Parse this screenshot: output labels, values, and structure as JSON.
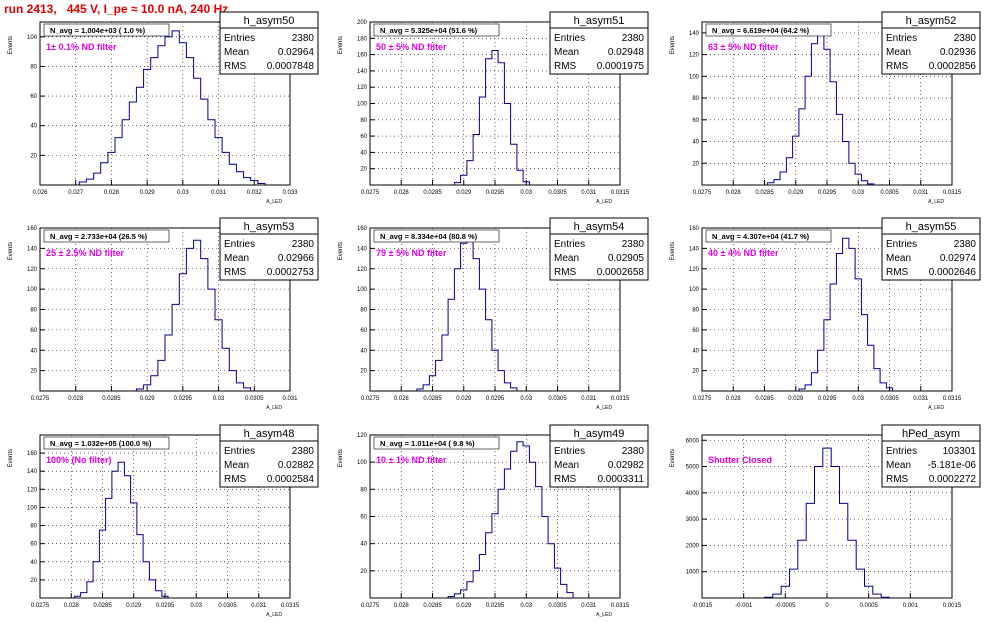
{
  "title": "run 2413,   445 V, I_pe ≈ 10.0 nA, 240 Hz",
  "colors": {
    "title": "#e00000",
    "histogram": "#00008b",
    "annotation": "#e000e0",
    "frame": "#000000"
  },
  "y_axis_label": "Events",
  "x_axis_label": "A_LED",
  "stats_labels": {
    "entries": "Entries",
    "mean": "Mean",
    "rms": "RMS"
  },
  "chart_data": [
    {
      "type": "histogram",
      "name": "h_asym50",
      "title": "N_avg = 1.004e+03 ( 1.0 %)",
      "annotation": "1± 0.1% ND filter",
      "xlim": [
        0.026,
        0.033
      ],
      "ylim": [
        0,
        110
      ],
      "xticks": [
        0.026,
        0.027,
        0.028,
        0.029,
        0.03,
        0.031,
        0.032,
        0.033
      ],
      "yticks": [
        20,
        40,
        60,
        80,
        100
      ],
      "stats": {
        "entries": "2380",
        "mean": "0.02964",
        "rms": "0.0007848"
      },
      "x": [
        0.0272,
        0.0274,
        0.0276,
        0.0278,
        0.028,
        0.0282,
        0.0284,
        0.0286,
        0.0288,
        0.029,
        0.0292,
        0.0294,
        0.0296,
        0.0298,
        0.03,
        0.0302,
        0.0304,
        0.0306,
        0.0308,
        0.031,
        0.0312,
        0.0314,
        0.0316,
        0.0318,
        0.032,
        0.0322
      ],
      "values": [
        2,
        4,
        8,
        15,
        22,
        32,
        44,
        56,
        66,
        78,
        86,
        94,
        100,
        104,
        96,
        86,
        72,
        58,
        44,
        32,
        22,
        14,
        9,
        5,
        3,
        1
      ]
    },
    {
      "type": "histogram",
      "name": "h_asym51",
      "title": "N_avg = 5.325e+04 (51.6 %)",
      "annotation": "50 ± 5% ND filter",
      "xlim": [
        0.0275,
        0.0315
      ],
      "ylim": [
        0,
        200
      ],
      "xticks": [
        0.0275,
        0.028,
        0.0285,
        0.029,
        0.0295,
        0.03,
        0.0305,
        0.031,
        0.0315
      ],
      "yticks": [
        20,
        40,
        60,
        80,
        100,
        120,
        140,
        160,
        180,
        200
      ],
      "stats": {
        "entries": "2380",
        "mean": "0.02948",
        "rms": "0.0001975"
      },
      "x": [
        0.0289,
        0.029,
        0.0291,
        0.0292,
        0.0293,
        0.0294,
        0.0295,
        0.0296,
        0.0297,
        0.0298,
        0.0299,
        0.03
      ],
      "values": [
        3,
        12,
        30,
        62,
        108,
        155,
        165,
        150,
        100,
        50,
        18,
        4
      ]
    },
    {
      "type": "histogram",
      "name": "h_asym52",
      "title": "N_avg = 6.619e+04 (64.2 %)",
      "annotation": "63 ± 5% ND filter",
      "xlim": [
        0.0275,
        0.0315
      ],
      "ylim": [
        0,
        150
      ],
      "xticks": [
        0.0275,
        0.028,
        0.0285,
        0.029,
        0.0295,
        0.03,
        0.0305,
        0.031,
        0.0315
      ],
      "yticks": [
        20,
        40,
        60,
        80,
        100,
        120,
        140
      ],
      "stats": {
        "entries": "2380",
        "mean": "0.02936",
        "rms": "0.0002856"
      },
      "x": [
        0.0286,
        0.0287,
        0.0288,
        0.0289,
        0.029,
        0.0291,
        0.0292,
        0.0293,
        0.0294,
        0.0295,
        0.0296,
        0.0297,
        0.0298,
        0.0299,
        0.03,
        0.0301,
        0.0302
      ],
      "values": [
        2,
        5,
        12,
        25,
        45,
        70,
        100,
        130,
        140,
        125,
        95,
        65,
        40,
        20,
        10,
        4,
        1
      ]
    },
    {
      "type": "histogram",
      "name": "h_asym53",
      "title": "N_avg = 2.733e+04 (26.5 %)",
      "annotation": "25 ± 2.5% ND filter",
      "xlim": [
        0.0275,
        0.031
      ],
      "ylim": [
        0,
        160
      ],
      "xticks": [
        0.0275,
        0.028,
        0.0285,
        0.029,
        0.0295,
        0.03,
        0.0305,
        0.031
      ],
      "yticks": [
        20,
        40,
        60,
        80,
        100,
        120,
        140,
        160
      ],
      "stats": {
        "entries": "2380",
        "mean": "0.02966",
        "rms": "0.0002753"
      },
      "x": [
        0.0289,
        0.029,
        0.0291,
        0.0292,
        0.0293,
        0.0294,
        0.0295,
        0.0296,
        0.0297,
        0.0298,
        0.0299,
        0.03,
        0.0301,
        0.0302,
        0.0303,
        0.0304
      ],
      "values": [
        2,
        6,
        15,
        30,
        55,
        85,
        115,
        140,
        148,
        130,
        100,
        70,
        42,
        20,
        8,
        3
      ]
    },
    {
      "type": "histogram",
      "name": "h_asym54",
      "title": "N_avg = 8.334e+04 (80.8 %)",
      "annotation": "79 ± 5% ND filter",
      "xlim": [
        0.0275,
        0.0315
      ],
      "ylim": [
        0,
        160
      ],
      "xticks": [
        0.0275,
        0.028,
        0.0285,
        0.029,
        0.0295,
        0.03,
        0.0305,
        0.031,
        0.0315
      ],
      "yticks": [
        20,
        40,
        60,
        80,
        100,
        120,
        140,
        160
      ],
      "stats": {
        "entries": "2380",
        "mean": "0.02905",
        "rms": "0.0002658"
      },
      "x": [
        0.0283,
        0.0284,
        0.0285,
        0.0286,
        0.0287,
        0.0288,
        0.0289,
        0.029,
        0.0291,
        0.0292,
        0.0293,
        0.0294,
        0.0295,
        0.0296,
        0.0297,
        0.0298
      ],
      "values": [
        2,
        6,
        15,
        30,
        55,
        90,
        120,
        145,
        150,
        130,
        100,
        70,
        40,
        20,
        8,
        3
      ]
    },
    {
      "type": "histogram",
      "name": "h_asym55",
      "title": "N_avg = 4.307e+04 (41.7 %)",
      "annotation": "40 ± 4% ND filter",
      "xlim": [
        0.0275,
        0.0315
      ],
      "ylim": [
        0,
        160
      ],
      "xticks": [
        0.0275,
        0.028,
        0.0285,
        0.029,
        0.0295,
        0.03,
        0.0305,
        0.031,
        0.0315
      ],
      "yticks": [
        20,
        40,
        60,
        80,
        100,
        120,
        140,
        160
      ],
      "stats": {
        "entries": "2380",
        "mean": "0.02974",
        "rms": "0.0002646"
      },
      "x": [
        0.0291,
        0.0292,
        0.0293,
        0.0294,
        0.0295,
        0.0296,
        0.0297,
        0.0298,
        0.0299,
        0.03,
        0.0301,
        0.0302,
        0.0303,
        0.0304,
        0.0305
      ],
      "values": [
        2,
        6,
        18,
        40,
        70,
        105,
        135,
        150,
        140,
        110,
        75,
        45,
        22,
        8,
        3
      ]
    },
    {
      "type": "histogram",
      "name": "h_asym48",
      "title": "N_avg = 1.032e+05 (100.0 %)",
      "annotation": "100% (No filter)",
      "xlim": [
        0.0275,
        0.0315
      ],
      "ylim": [
        0,
        180
      ],
      "xticks": [
        0.0275,
        0.028,
        0.0285,
        0.029,
        0.0295,
        0.03,
        0.0305,
        0.031,
        0.0315
      ],
      "yticks": [
        20,
        40,
        60,
        80,
        100,
        120,
        140,
        160
      ],
      "stats": {
        "entries": "2380",
        "mean": "0.02882",
        "rms": "0.0002584"
      },
      "x": [
        0.0281,
        0.0282,
        0.0283,
        0.0284,
        0.0285,
        0.0286,
        0.0287,
        0.0288,
        0.0289,
        0.029,
        0.0291,
        0.0292,
        0.0293,
        0.0294,
        0.0295
      ],
      "values": [
        2,
        6,
        18,
        40,
        75,
        110,
        140,
        150,
        135,
        105,
        70,
        40,
        20,
        8,
        2
      ]
    },
    {
      "type": "histogram",
      "name": "h_asym49",
      "title": "N_avg = 1.011e+04 ( 9.8 %)",
      "annotation": "10 ± 1% ND filter",
      "xlim": [
        0.0275,
        0.0315
      ],
      "ylim": [
        0,
        120
      ],
      "xticks": [
        0.0275,
        0.028,
        0.0285,
        0.029,
        0.0295,
        0.03,
        0.0305,
        0.031,
        0.0315
      ],
      "yticks": [
        20,
        40,
        60,
        80,
        100,
        120
      ],
      "stats": {
        "entries": "2380",
        "mean": "0.02982",
        "rms": "0.0003311"
      },
      "x": [
        0.0288,
        0.0289,
        0.029,
        0.0291,
        0.0292,
        0.0293,
        0.0294,
        0.0295,
        0.0296,
        0.0297,
        0.0298,
        0.0299,
        0.03,
        0.0301,
        0.0302,
        0.0303,
        0.0304,
        0.0305,
        0.0306,
        0.0307
      ],
      "values": [
        1,
        3,
        6,
        12,
        20,
        32,
        48,
        62,
        80,
        95,
        108,
        115,
        112,
        100,
        82,
        60,
        40,
        22,
        10,
        4
      ]
    },
    {
      "type": "histogram",
      "name": "hPed_asym",
      "title": "",
      "annotation": "Shutter Closed",
      "xlim": [
        -0.0015,
        0.0015
      ],
      "ylim": [
        0,
        6200
      ],
      "xticks": [
        -0.0015,
        -0.001,
        -0.0005,
        0,
        0.0005,
        0.001,
        0.0015
      ],
      "yticks": [
        1000,
        2000,
        3000,
        4000,
        5000,
        6000
      ],
      "stats": {
        "entries": "103301",
        "mean": "-5.181e-06",
        "rms": "0.0002272"
      },
      "x": [
        -0.0007,
        -0.0006,
        -0.0005,
        -0.0004,
        -0.0003,
        -0.0002,
        -0.0001,
        0,
        0.0001,
        0.0002,
        0.0003,
        0.0004,
        0.0005,
        0.0006,
        0.0007
      ],
      "values": [
        30,
        150,
        450,
        1100,
        2200,
        3600,
        5000,
        5700,
        5000,
        3600,
        2200,
        1100,
        450,
        150,
        30
      ]
    }
  ]
}
